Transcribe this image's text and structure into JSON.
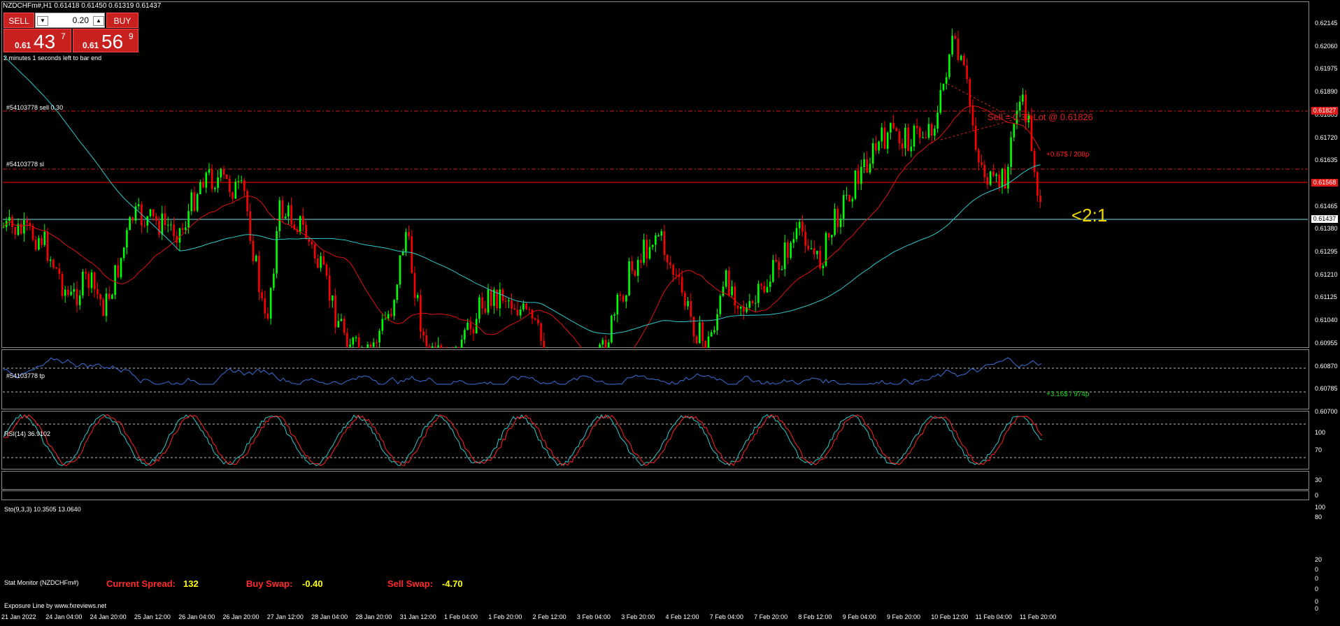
{
  "header": {
    "title": "NZDCHFm#,H1  0.61418 0.61450 0.61319 0.61437"
  },
  "trade_panel": {
    "sell_label": "SELL",
    "buy_label": "BUY",
    "lot_value": "0.20",
    "sell_small": "0.61",
    "sell_big": "43",
    "sell_sup": "7",
    "buy_small": "0.61",
    "buy_big": "56",
    "buy_sup": "9",
    "bar_timer": "2 minutes 1 seconds left to bar end"
  },
  "lines": {
    "sell_line": "#54103778 sell 0.30",
    "sl_line": "#54103778 sl",
    "tp_line": "#54103778 tp",
    "order_text": "Sell = 0.30 Lot @ 0.61826",
    "sl_profit": "+0.67$ / 208p",
    "tp_profit": "+3.16$ / 974p",
    "ratio": "<2:1"
  },
  "price_axis": {
    "labels": [
      "0.62145",
      "0.62060",
      "0.61975",
      "0.61890",
      "0.61805",
      "0.61720",
      "0.61635",
      "0.61550",
      "0.61465",
      "0.61380",
      "0.61295",
      "0.61210",
      "0.61125",
      "0.61040",
      "0.60955",
      "0.60870",
      "0.60785",
      "0.60700"
    ],
    "tag_sell": "0.61827",
    "tag_sl": "0.61568",
    "tag_current": "0.61437"
  },
  "rsi": {
    "title": "RSI(14) 36.9102",
    "levels": [
      "100",
      "70",
      "30",
      "0"
    ]
  },
  "stoch": {
    "title": "Sto(9,3,3) 10.3505 13.0640",
    "levels": [
      "100",
      "80",
      "20",
      "0"
    ]
  },
  "stat": {
    "title": "Stat Monitor (NZDCHFm#)",
    "spread_label": "Current Spread:",
    "spread_value": "132",
    "buy_swap_label": "Buy Swap:",
    "buy_swap_value": "-0.40",
    "sell_swap_label": "Sell Swap:",
    "sell_swap_value": "-4.70",
    "levels": [
      "0",
      "0"
    ]
  },
  "exposure": {
    "title": "Exposure Line by www.fxreviews.net",
    "levels": [
      "0",
      "0"
    ]
  },
  "time_axis": [
    "21 Jan 2022",
    "24 Jan 04:00",
    "24 Jan 20:00",
    "25 Jan 12:00",
    "26 Jan 04:00",
    "26 Jan 20:00",
    "27 Jan 12:00",
    "28 Jan 04:00",
    "28 Jan 20:00",
    "31 Jan 12:00",
    "1 Feb 04:00",
    "1 Feb 20:00",
    "2 Feb 12:00",
    "3 Feb 04:00",
    "3 Feb 20:00",
    "4 Feb 12:00",
    "7 Feb 04:00",
    "7 Feb 20:00",
    "8 Feb 12:00",
    "9 Feb 04:00",
    "9 Feb 20:00",
    "10 Feb 12:00",
    "11 Feb 04:00",
    "11 Feb 20:00"
  ],
  "colors": {
    "bull": "#00ff00",
    "bear": "#ff0000",
    "ma_fast": "#e01010",
    "ma_slow": "#30c8c8",
    "rsi": "#3a6fd8",
    "stoch_main": "#30c8c8",
    "stoch_signal": "#ff2020"
  }
}
